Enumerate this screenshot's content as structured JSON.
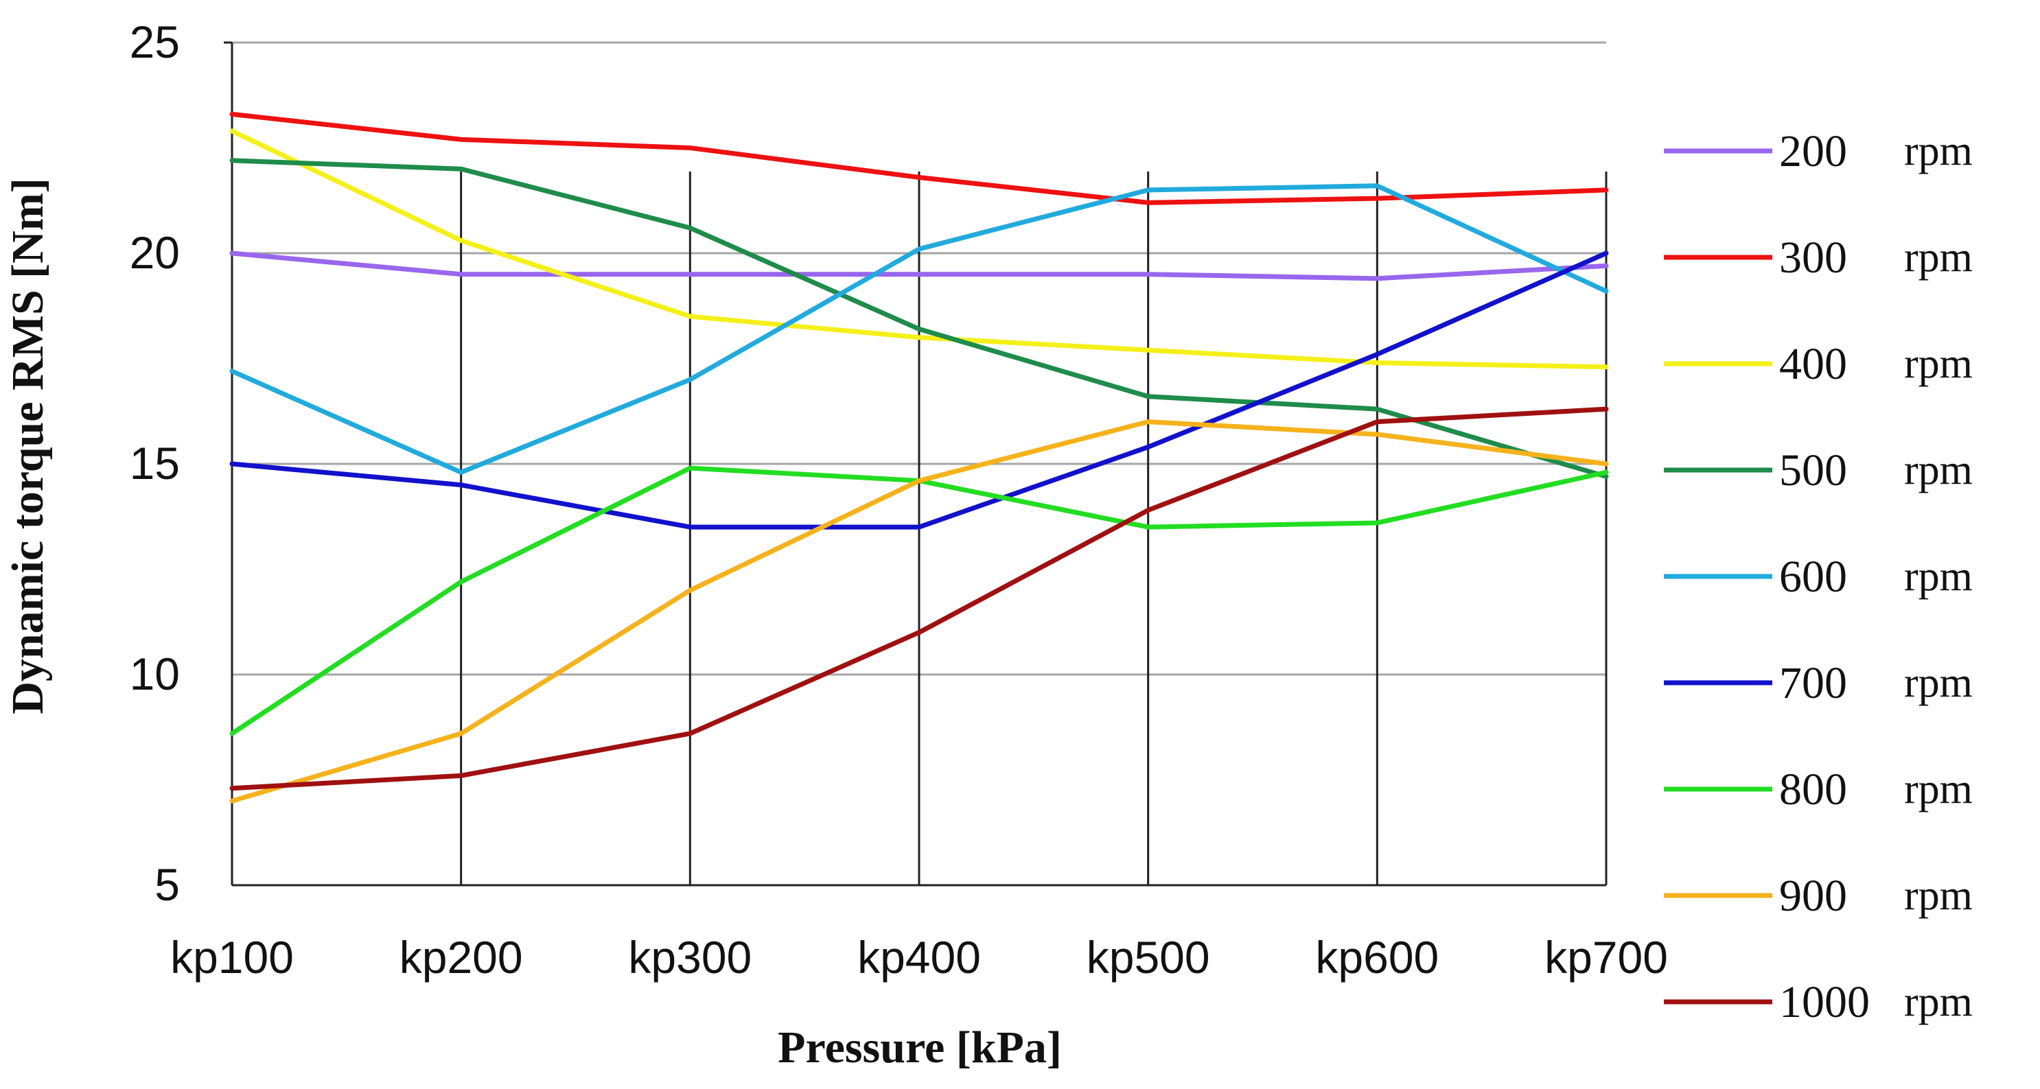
{
  "chart_data": {
    "type": "line",
    "title": "",
    "xlabel": "Pressure [kPa]",
    "ylabel": "Dynamic torque RMS [Nm]",
    "categories": [
      "kp100",
      "kp200",
      "kp300",
      "kp400",
      "kp500",
      "kp600",
      "kp700"
    ],
    "ylim": [
      5,
      25
    ],
    "yticks": [
      "5",
      "10",
      "15",
      "20",
      "25"
    ],
    "grid": true,
    "legend_position": "right",
    "series": [
      {
        "name": "200",
        "unit": "rpm",
        "color": "#9966ee",
        "values": [
          20.0,
          19.5,
          19.5,
          19.5,
          19.5,
          19.4,
          19.7
        ]
      },
      {
        "name": "300",
        "unit": "rpm",
        "color": "#ee1111",
        "values": [
          23.3,
          22.7,
          22.5,
          21.8,
          21.2,
          21.3,
          21.5
        ]
      },
      {
        "name": "400",
        "unit": "rpm",
        "color": "#f5f019",
        "values": [
          22.9,
          20.3,
          18.5,
          18.0,
          17.7,
          17.4,
          17.3
        ]
      },
      {
        "name": "500",
        "unit": "rpm",
        "color": "#1e8c4a",
        "values": [
          22.2,
          22.0,
          20.6,
          18.2,
          16.6,
          16.3,
          14.7
        ]
      },
      {
        "name": "600",
        "unit": "rpm",
        "color": "#22aadd",
        "values": [
          17.2,
          14.8,
          17.0,
          20.1,
          21.5,
          21.6,
          19.1
        ]
      },
      {
        "name": "700",
        "unit": "rpm",
        "color": "#1111cc",
        "values": [
          15.0,
          14.5,
          13.5,
          13.5,
          15.4,
          17.6,
          20.0
        ]
      },
      {
        "name": "800",
        "unit": "rpm",
        "color": "#22dd22",
        "values": [
          8.6,
          12.2,
          14.9,
          14.6,
          13.5,
          13.6,
          14.8
        ]
      },
      {
        "name": "900",
        "unit": "rpm",
        "color": "#f5b21c",
        "values": [
          7.0,
          8.6,
          12.0,
          14.6,
          16.0,
          15.7,
          15.0
        ]
      },
      {
        "name": "1000",
        "unit": "rpm",
        "color": "#a01010",
        "values": [
          7.3,
          7.6,
          8.6,
          11.0,
          13.9,
          16.0,
          16.3
        ]
      }
    ]
  }
}
